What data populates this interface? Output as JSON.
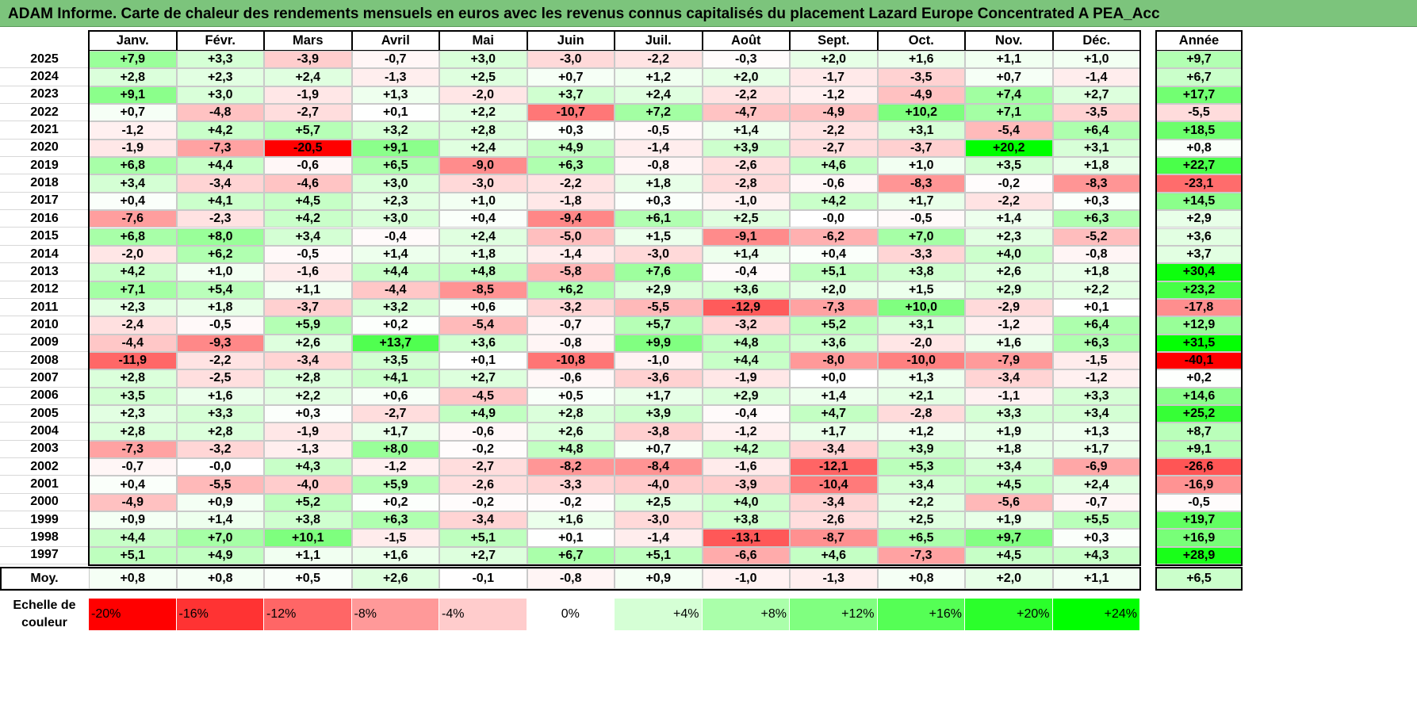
{
  "title": "ADAM Informe. Carte de chaleur des rendements mensuels en euros avec les revenus connus capitalisés du placement Lazard Europe Concentrated A PEA_Acc",
  "chart_data": {
    "type": "heatmap",
    "title": "ADAM Informe. Carte de chaleur des rendements mensuels en euros avec les revenus connus capitalisés du placement Lazard Europe Concentrated A PEA_Acc",
    "columns": [
      "Janv.",
      "Févr.",
      "Mars",
      "Avril",
      "Mai",
      "Juin",
      "Juil.",
      "Août",
      "Sept.",
      "Oct.",
      "Nov.",
      "Déc."
    ],
    "year_column": "Année",
    "rows": [
      {
        "year": "2025",
        "months": [
          "+7,9",
          "+3,3",
          "-3,9",
          "-0,7",
          "+3,0",
          "-3,0",
          "-2,2",
          "-0,3",
          "+2,0",
          "+1,6",
          "+1,1",
          "+1,0"
        ],
        "annual": "+9,7"
      },
      {
        "year": "2024",
        "months": [
          "+2,8",
          "+2,3",
          "+2,4",
          "-1,3",
          "+2,5",
          "+0,7",
          "+1,2",
          "+2,0",
          "-1,7",
          "-3,5",
          "+0,7",
          "-1,4"
        ],
        "annual": "+6,7"
      },
      {
        "year": "2023",
        "months": [
          "+9,1",
          "+3,0",
          "-1,9",
          "+1,3",
          "-2,0",
          "+3,7",
          "+2,4",
          "-2,2",
          "-1,2",
          "-4,9",
          "+7,4",
          "+2,7"
        ],
        "annual": "+17,7"
      },
      {
        "year": "2022",
        "months": [
          "+0,7",
          "-4,8",
          "-2,7",
          "+0,1",
          "+2,2",
          "-10,7",
          "+7,2",
          "-4,7",
          "-4,9",
          "+10,2",
          "+7,1",
          "-3,5"
        ],
        "annual": "-5,5"
      },
      {
        "year": "2021",
        "months": [
          "-1,2",
          "+4,2",
          "+5,7",
          "+3,2",
          "+2,8",
          "+0,3",
          "-0,5",
          "+1,4",
          "-2,2",
          "+3,1",
          "-5,4",
          "+6,4"
        ],
        "annual": "+18,5"
      },
      {
        "year": "2020",
        "months": [
          "-1,9",
          "-7,3",
          "-20,5",
          "+9,1",
          "+2,4",
          "+4,9",
          "-1,4",
          "+3,9",
          "-2,7",
          "-3,7",
          "+20,2",
          "+3,1"
        ],
        "annual": "+0,8"
      },
      {
        "year": "2019",
        "months": [
          "+6,8",
          "+4,4",
          "-0,6",
          "+6,5",
          "-9,0",
          "+6,3",
          "-0,8",
          "-2,6",
          "+4,6",
          "+1,0",
          "+3,5",
          "+1,8"
        ],
        "annual": "+22,7"
      },
      {
        "year": "2018",
        "months": [
          "+3,4",
          "-3,4",
          "-4,6",
          "+3,0",
          "-3,0",
          "-2,2",
          "+1,8",
          "-2,8",
          "-0,6",
          "-8,3",
          "-0,2",
          "-8,3"
        ],
        "annual": "-23,1"
      },
      {
        "year": "2017",
        "months": [
          "+0,4",
          "+4,1",
          "+4,5",
          "+2,3",
          "+1,0",
          "-1,8",
          "+0,3",
          "-1,0",
          "+4,2",
          "+1,7",
          "-2,2",
          "+0,3"
        ],
        "annual": "+14,5"
      },
      {
        "year": "2016",
        "months": [
          "-7,6",
          "-2,3",
          "+4,2",
          "+3,0",
          "+0,4",
          "-9,4",
          "+6,1",
          "+2,5",
          "-0,0",
          "-0,5",
          "+1,4",
          "+6,3"
        ],
        "annual": "+2,9"
      },
      {
        "year": "2015",
        "months": [
          "+6,8",
          "+8,0",
          "+3,4",
          "-0,4",
          "+2,4",
          "-5,0",
          "+1,5",
          "-9,1",
          "-6,2",
          "+7,0",
          "+2,3",
          "-5,2"
        ],
        "annual": "+3,6"
      },
      {
        "year": "2014",
        "months": [
          "-2,0",
          "+6,2",
          "-0,5",
          "+1,4",
          "+1,8",
          "-1,4",
          "-3,0",
          "+1,4",
          "+0,4",
          "-3,3",
          "+4,0",
          "-0,8"
        ],
        "annual": "+3,7"
      },
      {
        "year": "2013",
        "months": [
          "+4,2",
          "+1,0",
          "-1,6",
          "+4,4",
          "+4,8",
          "-5,8",
          "+7,6",
          "-0,4",
          "+5,1",
          "+3,8",
          "+2,6",
          "+1,8"
        ],
        "annual": "+30,4"
      },
      {
        "year": "2012",
        "months": [
          "+7,1",
          "+5,4",
          "+1,1",
          "-4,4",
          "-8,5",
          "+6,2",
          "+2,9",
          "+3,6",
          "+2,0",
          "+1,5",
          "+2,9",
          "+2,2"
        ],
        "annual": "+23,2"
      },
      {
        "year": "2011",
        "months": [
          "+2,3",
          "+1,8",
          "-3,7",
          "+3,2",
          "+0,6",
          "-3,2",
          "-5,5",
          "-12,9",
          "-7,3",
          "+10,0",
          "-2,9",
          "+0,1"
        ],
        "annual": "-17,8"
      },
      {
        "year": "2010",
        "months": [
          "-2,4",
          "-0,5",
          "+5,9",
          "+0,2",
          "-5,4",
          "-0,7",
          "+5,7",
          "-3,2",
          "+5,2",
          "+3,1",
          "-1,2",
          "+6,4"
        ],
        "annual": "+12,9"
      },
      {
        "year": "2009",
        "months": [
          "-4,4",
          "-9,3",
          "+2,6",
          "+13,7",
          "+3,6",
          "-0,8",
          "+9,9",
          "+4,8",
          "+3,6",
          "-2,0",
          "+1,6",
          "+6,3"
        ],
        "annual": "+31,5"
      },
      {
        "year": "2008",
        "months": [
          "-11,9",
          "-2,2",
          "-3,4",
          "+3,5",
          "+0,1",
          "-10,8",
          "-1,0",
          "+4,4",
          "-8,0",
          "-10,0",
          "-7,9",
          "-1,5"
        ],
        "annual": "-40,1"
      },
      {
        "year": "2007",
        "months": [
          "+2,8",
          "-2,5",
          "+2,8",
          "+4,1",
          "+2,7",
          "-0,6",
          "-3,6",
          "-1,9",
          "+0,0",
          "+1,3",
          "-3,4",
          "-1,2"
        ],
        "annual": "+0,2"
      },
      {
        "year": "2006",
        "months": [
          "+3,5",
          "+1,6",
          "+2,2",
          "+0,6",
          "-4,5",
          "+0,5",
          "+1,7",
          "+2,9",
          "+1,4",
          "+2,1",
          "-1,1",
          "+3,3"
        ],
        "annual": "+14,6"
      },
      {
        "year": "2005",
        "months": [
          "+2,3",
          "+3,3",
          "+0,3",
          "-2,7",
          "+4,9",
          "+2,8",
          "+3,9",
          "-0,4",
          "+4,7",
          "-2,8",
          "+3,3",
          "+3,4"
        ],
        "annual": "+25,2"
      },
      {
        "year": "2004",
        "months": [
          "+2,8",
          "+2,8",
          "-1,9",
          "+1,7",
          "-0,6",
          "+2,6",
          "-3,8",
          "-1,2",
          "+1,7",
          "+1,2",
          "+1,9",
          "+1,3"
        ],
        "annual": "+8,7"
      },
      {
        "year": "2003",
        "months": [
          "-7,3",
          "-3,2",
          "-1,3",
          "+8,0",
          "-0,2",
          "+4,8",
          "+0,7",
          "+4,2",
          "-3,4",
          "+3,9",
          "+1,8",
          "+1,7"
        ],
        "annual": "+9,1"
      },
      {
        "year": "2002",
        "months": [
          "-0,7",
          "-0,0",
          "+4,3",
          "-1,2",
          "-2,7",
          "-8,2",
          "-8,4",
          "-1,6",
          "-12,1",
          "+5,3",
          "+3,4",
          "-6,9"
        ],
        "annual": "-26,6"
      },
      {
        "year": "2001",
        "months": [
          "+0,4",
          "-5,5",
          "-4,0",
          "+5,9",
          "-2,6",
          "-3,3",
          "-4,0",
          "-3,9",
          "-10,4",
          "+3,4",
          "+4,5",
          "+2,4"
        ],
        "annual": "-16,9"
      },
      {
        "year": "2000",
        "months": [
          "-4,9",
          "+0,9",
          "+5,2",
          "+0,2",
          "-0,2",
          "-0,2",
          "+2,5",
          "+4,0",
          "-3,4",
          "+2,2",
          "-5,6",
          "-0,7"
        ],
        "annual": "-0,5"
      },
      {
        "year": "1999",
        "months": [
          "+0,9",
          "+1,4",
          "+3,8",
          "+6,3",
          "-3,4",
          "+1,6",
          "-3,0",
          "+3,8",
          "-2,6",
          "+2,5",
          "+1,9",
          "+5,5"
        ],
        "annual": "+19,7"
      },
      {
        "year": "1998",
        "months": [
          "+4,4",
          "+7,0",
          "+10,1",
          "-1,5",
          "+5,1",
          "+0,1",
          "-1,4",
          "-13,1",
          "-8,7",
          "+6,5",
          "+9,7",
          "+0,3"
        ],
        "annual": "+16,9"
      },
      {
        "year": "1997",
        "months": [
          "+5,1",
          "+4,9",
          "+1,1",
          "+1,6",
          "+2,7",
          "+6,7",
          "+5,1",
          "-6,6",
          "+4,6",
          "-7,3",
          "+4,5",
          "+4,3"
        ],
        "annual": "+28,9"
      }
    ],
    "average": {
      "label": "Moy.",
      "months": [
        "+0,8",
        "+0,8",
        "+0,5",
        "+2,6",
        "-0,1",
        "-0,8",
        "+0,9",
        "-1,0",
        "-1,3",
        "+0,8",
        "+2,0",
        "+1,1"
      ],
      "annual": "+6,5"
    },
    "scale": {
      "label_line1": "Echelle de",
      "label_line2": "couleur",
      "items": [
        "-20%",
        "-16%",
        "-12%",
        "-8%",
        "-4%",
        "0%",
        "+4%",
        "+8%",
        "+12%",
        "+16%",
        "+20%",
        "+24%"
      ],
      "values": [
        -20,
        -16,
        -12,
        -8,
        -4,
        0,
        4,
        8,
        12,
        16,
        20,
        24
      ]
    },
    "colors": {
      "negative": "#ff0000",
      "neutral": "#ffffff",
      "positive": "#00ff00",
      "title_bar": "#7cc47c"
    }
  }
}
